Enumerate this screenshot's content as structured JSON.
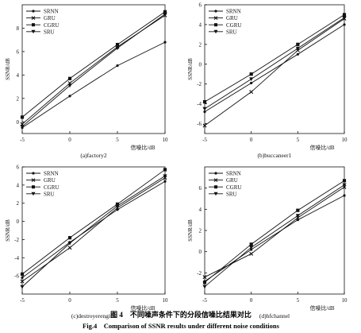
{
  "figure": {
    "caption_cn": "图 4　不同噪声条件下的分段信噪比结果对比",
    "caption_en": "Fig.4　Comparison of SSNR results under different noise conditions"
  },
  "styles": {
    "line_color": "#111111",
    "background": "#ffffff"
  },
  "chart_data": [
    {
      "type": "line",
      "caption": "(a)factory2",
      "xlabel": "信噪比/dB",
      "ylabel": "SSNR/dB",
      "x": [
        -5,
        0,
        5,
        10
      ],
      "xticks": [
        -5,
        0,
        5,
        10
      ],
      "yticks": [
        0,
        2,
        4,
        6,
        8
      ],
      "xlim": [
        -5,
        10
      ],
      "ylim": [
        -1,
        10
      ],
      "legend_position": "top-left",
      "series": [
        {
          "name": "SRNN",
          "marker": "dot",
          "values": [
            -0.5,
            2.2,
            4.8,
            6.8
          ]
        },
        {
          "name": "GRU",
          "marker": "x",
          "values": [
            -0.2,
            3.3,
            6.4,
            9.1
          ]
        },
        {
          "name": "CGRU",
          "marker": "square",
          "values": [
            0.4,
            3.7,
            6.6,
            9.4
          ]
        },
        {
          "name": "SRU",
          "marker": "triangle",
          "values": [
            -0.4,
            3.1,
            6.3,
            9.2
          ]
        }
      ]
    },
    {
      "type": "line",
      "caption": "(b)buccaneer1",
      "xlabel": "信噪比/dB",
      "ylabel": "SSNR/dB",
      "x": [
        -5,
        0,
        5,
        10
      ],
      "xticks": [
        -5,
        0,
        5,
        10
      ],
      "yticks": [
        -6,
        -4,
        -2,
        0,
        2,
        4,
        6
      ],
      "xlim": [
        -5,
        10
      ],
      "ylim": [
        -7,
        6
      ],
      "legend_position": "top-left",
      "series": [
        {
          "name": "SRNN",
          "marker": "dot",
          "values": [
            -4.8,
            -1.9,
            1.0,
            4.0
          ]
        },
        {
          "name": "GRU",
          "marker": "x",
          "values": [
            -6.2,
            -2.8,
            1.4,
            4.6
          ]
        },
        {
          "name": "CGRU",
          "marker": "square",
          "values": [
            -3.8,
            -1.0,
            2.0,
            5.0
          ]
        },
        {
          "name": "SRU",
          "marker": "triangle",
          "values": [
            -4.5,
            -1.5,
            1.6,
            4.7
          ]
        }
      ]
    },
    {
      "type": "line",
      "caption": "(c)destroyerengine",
      "xlabel": "信噪比/dB",
      "ylabel": "SSNR/dB",
      "x": [
        -5,
        0,
        5,
        10
      ],
      "xticks": [
        -5,
        0,
        5,
        10
      ],
      "yticks": [
        -6,
        -4,
        -2,
        0,
        2,
        4,
        6
      ],
      "xlim": [
        -5,
        10
      ],
      "ylim": [
        -8,
        6
      ],
      "legend_position": "top-left",
      "series": [
        {
          "name": "SRNN",
          "marker": "dot",
          "values": [
            -6.2,
            -2.3,
            1.3,
            4.4
          ]
        },
        {
          "name": "GRU",
          "marker": "x",
          "values": [
            -6.6,
            -2.9,
            1.5,
            4.8
          ]
        },
        {
          "name": "CGRU",
          "marker": "square",
          "values": [
            -5.8,
            -1.8,
            1.9,
            5.7
          ]
        },
        {
          "name": "SRU",
          "marker": "triangle",
          "values": [
            -7.2,
            -2.4,
            1.7,
            5.0
          ]
        }
      ]
    },
    {
      "type": "line",
      "caption": "(d)hfchannel",
      "xlabel": "信噪比/dB",
      "ylabel": "SSNR/dB",
      "x": [
        -5,
        0,
        5,
        10
      ],
      "xticks": [
        -5,
        0,
        5,
        10
      ],
      "yticks": [
        -2,
        0,
        2,
        4,
        6
      ],
      "xlim": [
        -5,
        10
      ],
      "ylim": [
        -4,
        8
      ],
      "legend_position": "top-left",
      "series": [
        {
          "name": "SRNN",
          "marker": "dot",
          "values": [
            -2.8,
            0.2,
            3.0,
            5.3
          ]
        },
        {
          "name": "GRU",
          "marker": "x",
          "values": [
            -2.4,
            -0.2,
            3.2,
            6.1
          ]
        },
        {
          "name": "CGRU",
          "marker": "square",
          "values": [
            -2.9,
            0.7,
            3.9,
            6.7
          ]
        },
        {
          "name": "SRU",
          "marker": "triangle",
          "values": [
            -3.3,
            0.4,
            3.4,
            6.3
          ]
        }
      ]
    }
  ]
}
